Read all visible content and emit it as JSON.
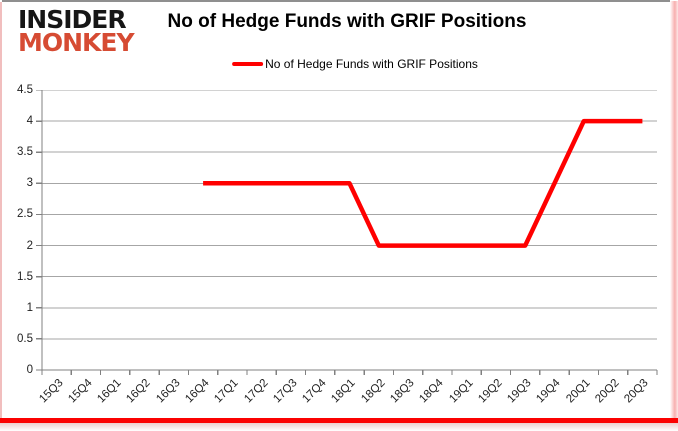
{
  "logo": {
    "line1": "INSIDER",
    "line2": "MONKEY"
  },
  "header": {
    "title": "No of Hedge Funds with GRIF Positions"
  },
  "legend": {
    "label": "No of Hedge Funds with GRIF Positions"
  },
  "chart_data": {
    "type": "line",
    "title": "No of Hedge Funds with GRIF Positions",
    "categories": [
      "15Q3",
      "15Q4",
      "16Q1",
      "16Q2",
      "16Q3",
      "16Q4",
      "17Q1",
      "17Q2",
      "17Q3",
      "17Q4",
      "18Q1",
      "18Q2",
      "18Q3",
      "18Q4",
      "19Q1",
      "19Q2",
      "19Q3",
      "19Q4",
      "20Q1",
      "20Q2",
      "20Q3"
    ],
    "series": [
      {
        "name": "No of Hedge Funds with GRIF Positions",
        "color": "#ff0000",
        "values": [
          null,
          null,
          null,
          null,
          null,
          3,
          3,
          3,
          3,
          3,
          3,
          2,
          2,
          2,
          2,
          2,
          2,
          3,
          4,
          4,
          4
        ]
      }
    ],
    "ylim": [
      0,
      4.5
    ],
    "yticks": [
      0,
      0.5,
      1,
      1.5,
      2,
      2.5,
      3,
      3.5,
      4,
      4.5
    ],
    "ytick_labels": [
      "0",
      "0.5",
      "1",
      "1.5",
      "2",
      "2.5",
      "3",
      "3.5",
      "4",
      "4.5"
    ],
    "grid": true,
    "legend_position": "top",
    "xlabel": "",
    "ylabel": ""
  },
  "colors": {
    "line": "#ff0000",
    "grid": "#a6a6a6",
    "axis": "#808080",
    "tick_label": "#1f1f1f",
    "title": "#000000",
    "logo_black": "#161616",
    "logo_red": "#d64b33",
    "bottom_bar": "#fb0101"
  }
}
